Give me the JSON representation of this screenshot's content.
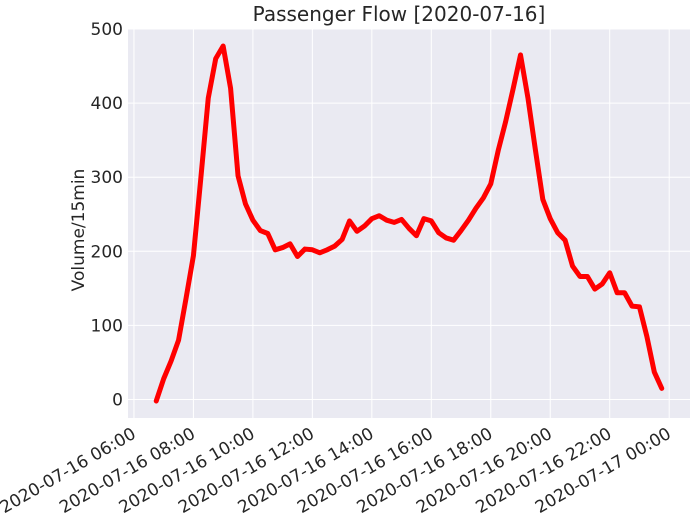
{
  "chart_data": {
    "type": "line",
    "title": "Passenger Flow [2020-07-16]",
    "xlabel": "",
    "ylabel": "Volume/15min",
    "xlim": [
      "2020-07-16 05:48",
      "2020-07-17 00:42"
    ],
    "ylim": [
      -25,
      500
    ],
    "x_ticks": [
      "2020-07-16 06:00",
      "2020-07-16 08:00",
      "2020-07-16 10:00",
      "2020-07-16 12:00",
      "2020-07-16 14:00",
      "2020-07-16 16:00",
      "2020-07-16 18:00",
      "2020-07-16 20:00",
      "2020-07-16 22:00",
      "2020-07-17 00:00"
    ],
    "y_ticks": [
      0,
      100,
      200,
      300,
      400,
      500
    ],
    "grid": true,
    "background": "#EAEAF2",
    "series": [
      {
        "color": "#FF0000",
        "x": [
          "2020-07-16 06:45",
          "2020-07-16 07:00",
          "2020-07-16 07:15",
          "2020-07-16 07:30",
          "2020-07-16 07:45",
          "2020-07-16 08:00",
          "2020-07-16 08:15",
          "2020-07-16 08:30",
          "2020-07-16 08:45",
          "2020-07-16 09:00",
          "2020-07-16 09:15",
          "2020-07-16 09:30",
          "2020-07-16 09:45",
          "2020-07-16 10:00",
          "2020-07-16 10:15",
          "2020-07-16 10:30",
          "2020-07-16 10:45",
          "2020-07-16 11:00",
          "2020-07-16 11:15",
          "2020-07-16 11:30",
          "2020-07-16 11:45",
          "2020-07-16 12:00",
          "2020-07-16 12:15",
          "2020-07-16 12:30",
          "2020-07-16 12:45",
          "2020-07-16 13:00",
          "2020-07-16 13:15",
          "2020-07-16 13:30",
          "2020-07-16 13:45",
          "2020-07-16 14:00",
          "2020-07-16 14:15",
          "2020-07-16 14:30",
          "2020-07-16 14:45",
          "2020-07-16 15:00",
          "2020-07-16 15:15",
          "2020-07-16 15:30",
          "2020-07-16 15:45",
          "2020-07-16 16:00",
          "2020-07-16 16:15",
          "2020-07-16 16:30",
          "2020-07-16 16:45",
          "2020-07-16 17:00",
          "2020-07-16 17:15",
          "2020-07-16 17:30",
          "2020-07-16 17:45",
          "2020-07-16 18:00",
          "2020-07-16 18:15",
          "2020-07-16 18:30",
          "2020-07-16 18:45",
          "2020-07-16 19:00",
          "2020-07-16 19:15",
          "2020-07-16 19:30",
          "2020-07-16 19:45",
          "2020-07-16 20:00",
          "2020-07-16 20:15",
          "2020-07-16 20:30",
          "2020-07-16 20:45",
          "2020-07-16 21:00",
          "2020-07-16 21:15",
          "2020-07-16 21:30",
          "2020-07-16 21:45",
          "2020-07-16 22:00",
          "2020-07-16 22:15",
          "2020-07-16 22:30",
          "2020-07-16 22:45",
          "2020-07-16 23:00",
          "2020-07-16 23:15",
          "2020-07-16 23:30",
          "2020-07-16 23:45"
        ],
        "y": [
          -2,
          28,
          52,
          80,
          136,
          194,
          299,
          407,
          460,
          477,
          420,
          302,
          264,
          242,
          228,
          224,
          202,
          205,
          210,
          193,
          203,
          202,
          198,
          202,
          207,
          216,
          241,
          227,
          234,
          244,
          248,
          242,
          239,
          243,
          231,
          221,
          244,
          241,
          225,
          218,
          215,
          228,
          242,
          258,
          272,
          291,
          336,
          375,
          419,
          465,
          407,
          337,
          270,
          244,
          225,
          215,
          180,
          166,
          166,
          149,
          156,
          171,
          144,
          144,
          126,
          125,
          85,
          37,
          15
        ]
      }
    ]
  }
}
